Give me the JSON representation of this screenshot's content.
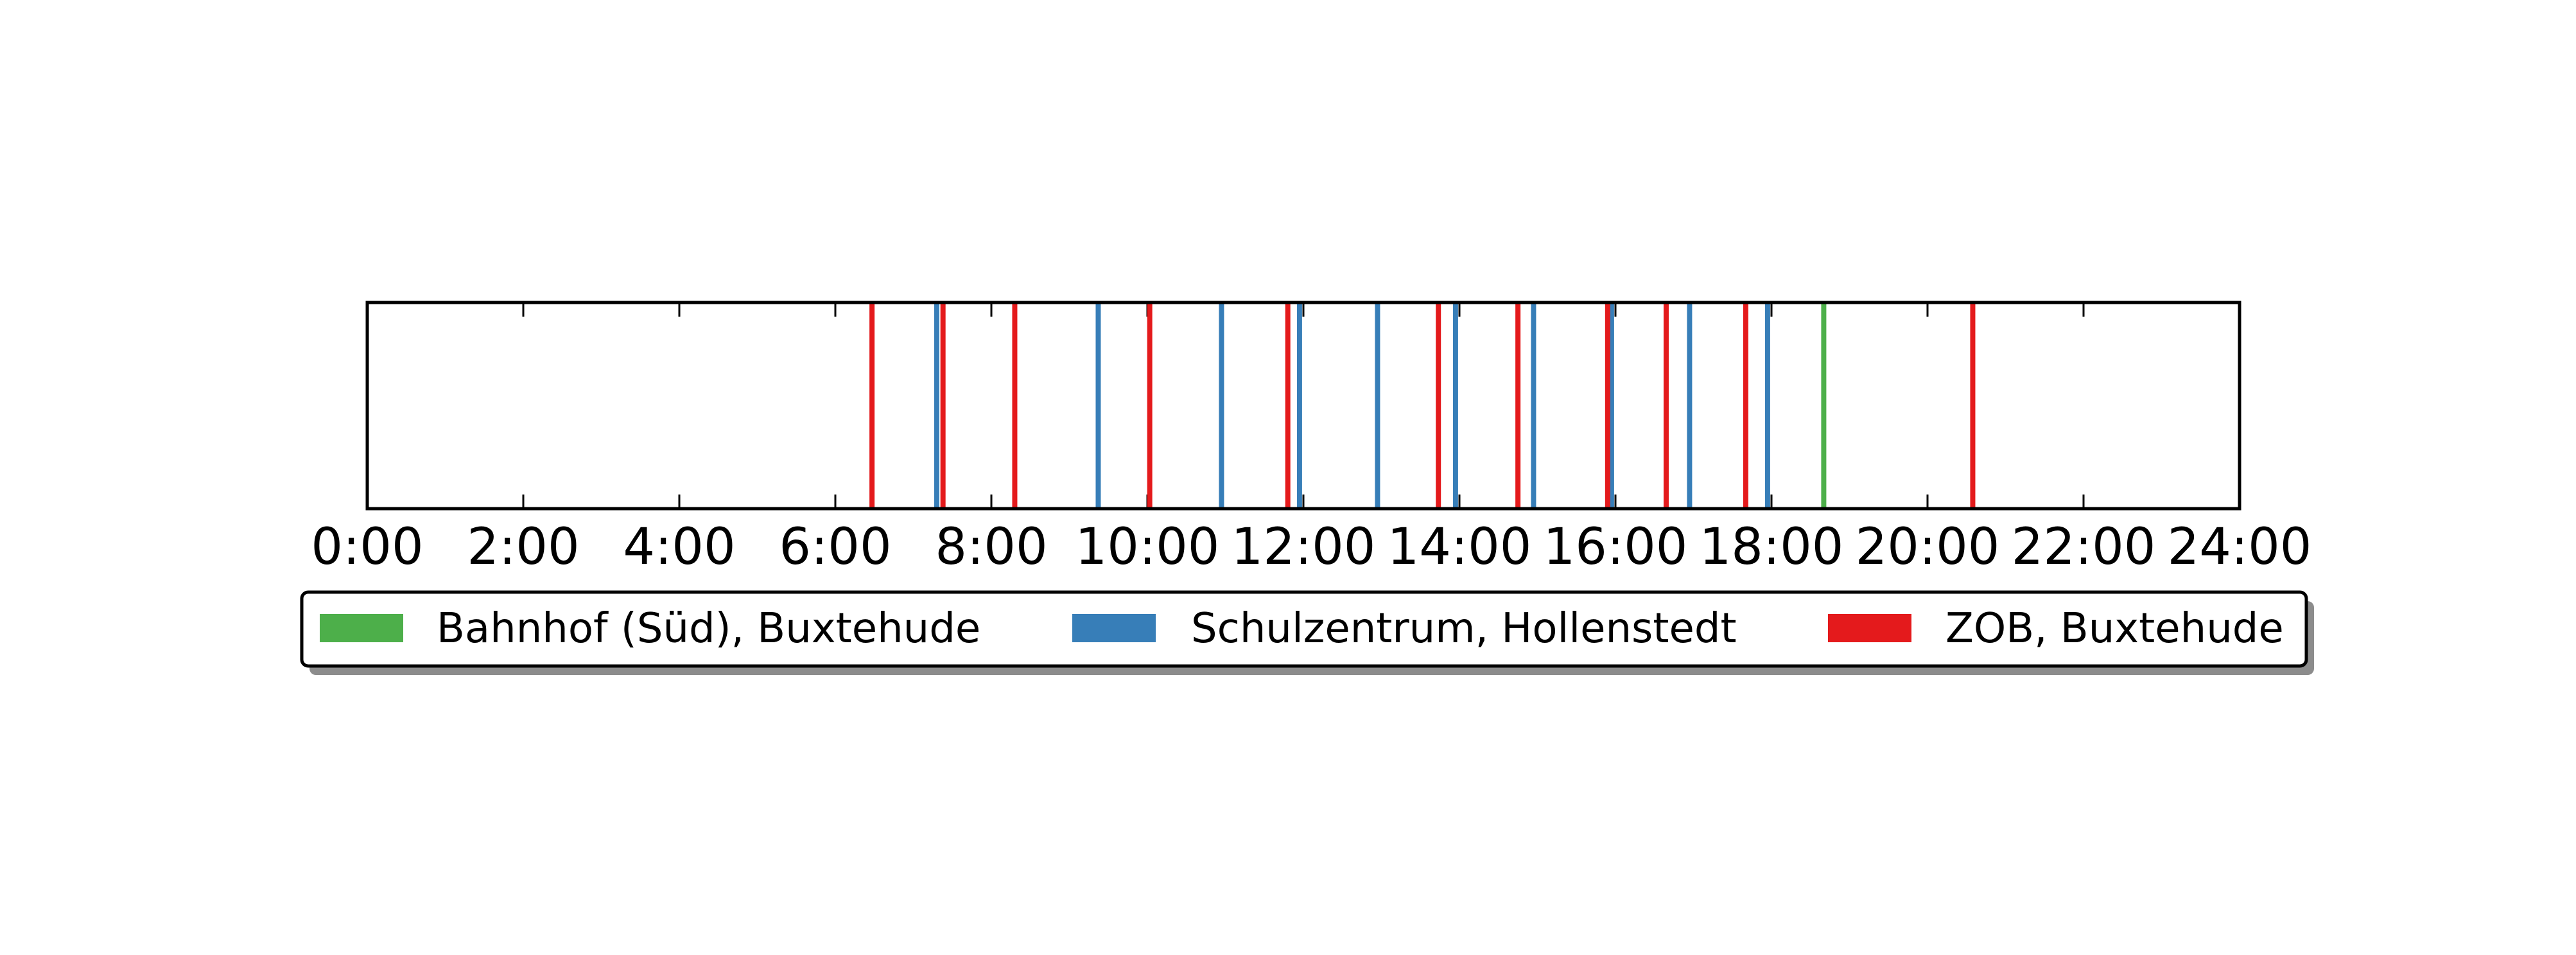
{
  "chart_data": {
    "type": "timeline",
    "title": "",
    "xlabel": "",
    "ylabel": "",
    "xlim": [
      0,
      24
    ],
    "x_unit": "hours",
    "x_ticks": [
      0,
      2,
      4,
      6,
      8,
      10,
      12,
      14,
      16,
      18,
      20,
      22,
      24
    ],
    "x_tick_labels": [
      "0:00",
      "2:00",
      "4:00",
      "6:00",
      "8:00",
      "10:00",
      "12:00",
      "14:00",
      "16:00",
      "18:00",
      "20:00",
      "22:00",
      "24:00"
    ],
    "grid": false,
    "legend_position": "below",
    "series": [
      {
        "name": "Bahnhof (Süd), Buxtehude",
        "color": "#4daf4a",
        "times": [
          18.67
        ]
      },
      {
        "name": "Schulzentrum, Hollenstedt",
        "color": "#377eb8",
        "times": [
          7.3,
          9.37,
          10.95,
          11.95,
          12.95,
          13.95,
          14.95,
          15.95,
          16.95,
          17.95
        ]
      },
      {
        "name": "ZOB, Buxtehude",
        "color": "#e41a1c",
        "times": [
          6.47,
          7.38,
          8.3,
          10.03,
          11.8,
          13.73,
          14.75,
          15.9,
          16.65,
          17.67,
          20.58
        ]
      }
    ]
  }
}
